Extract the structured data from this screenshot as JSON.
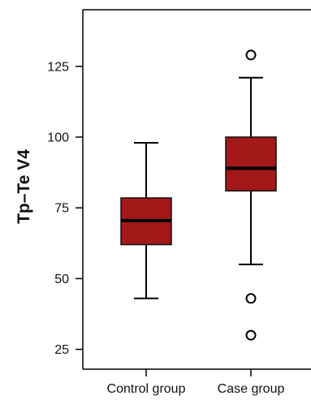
{
  "chart_data": {
    "type": "boxplot",
    "title": "",
    "xlabel": "",
    "ylabel": "Tp–Te V4",
    "ylim": [
      18,
      145
    ],
    "yticks": [
      25,
      50,
      75,
      100,
      125
    ],
    "categories": [
      "Control group",
      "Case group"
    ],
    "series": [
      {
        "category": "Control group",
        "whisker_low": 43,
        "q1": 62,
        "median": 70.5,
        "q3": 78.5,
        "whisker_high": 98,
        "outliers": []
      },
      {
        "category": "Case group",
        "whisker_low": 55,
        "q1": 81,
        "median": 89,
        "q3": 100,
        "whisker_high": 121,
        "outliers": [
          129,
          43,
          30
        ]
      }
    ],
    "box_color": "#a31818",
    "grid": false,
    "legend": "none"
  }
}
